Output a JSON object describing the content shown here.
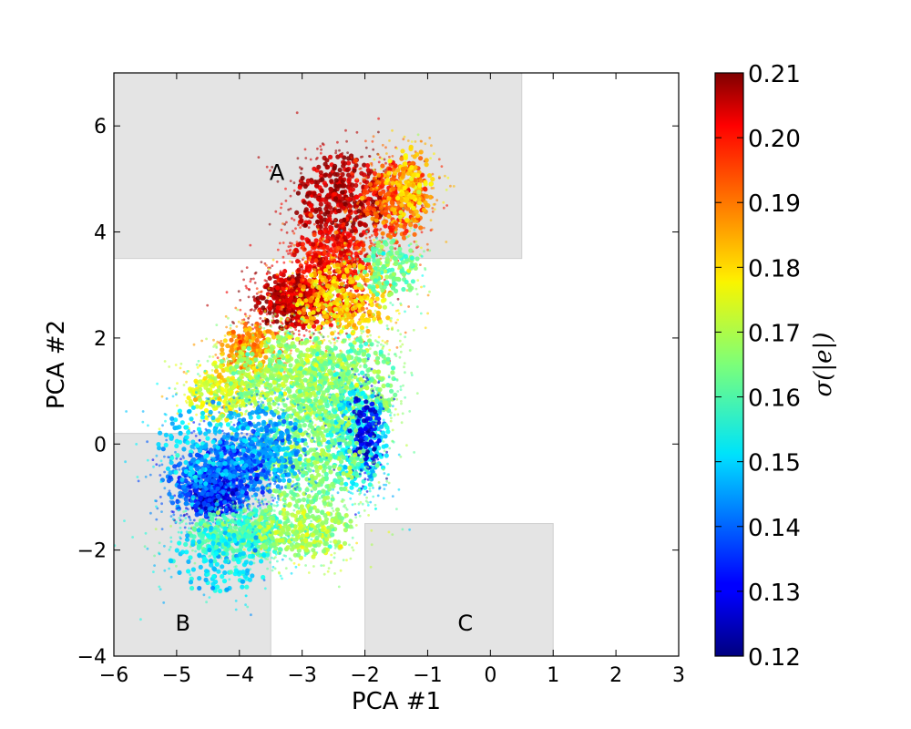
{
  "chart_data": {
    "type": "scatter",
    "xlabel": "PCA #1",
    "ylabel": "PCA #2",
    "xlim": [
      -6,
      3
    ],
    "ylim": [
      -4,
      7
    ],
    "xticks": [
      -6,
      -5,
      -4,
      -3,
      -2,
      -1,
      0,
      1,
      2,
      3
    ],
    "yticks": [
      -4,
      -2,
      0,
      2,
      4,
      6
    ],
    "xtick_labels": [
      "−6",
      "−5",
      "−4",
      "−3",
      "−2",
      "−1",
      "0",
      "1",
      "2",
      "3"
    ],
    "ytick_labels": [
      "−4",
      "−2",
      "0",
      "2",
      "4",
      "6"
    ],
    "grid": false,
    "colorbar": {
      "label": "σ(|e|)",
      "colormap": "jet",
      "range": [
        0.12,
        0.21
      ],
      "ticks": [
        0.12,
        0.13,
        0.14,
        0.15,
        0.16,
        0.17,
        0.18,
        0.19,
        0.2,
        0.21
      ],
      "tick_labels": [
        "0.12",
        "0.13",
        "0.14",
        "0.15",
        "0.16",
        "0.17",
        "0.18",
        "0.19",
        "0.20",
        "0.21"
      ]
    },
    "regions": [
      {
        "label": "A",
        "x": [
          -6,
          0.5
        ],
        "y": [
          3.5,
          7
        ]
      },
      {
        "label": "B",
        "x": [
          -6,
          -3.5
        ],
        "y": [
          -4,
          0.2
        ]
      },
      {
        "label": "C",
        "x": [
          -2,
          1
        ],
        "y": [
          -4,
          -1.5
        ]
      }
    ],
    "region_label_positions": [
      {
        "label": "A",
        "x": -3.4,
        "y": 5.1
      },
      {
        "label": "B",
        "x": -4.9,
        "y": -3.4
      },
      {
        "label": "C",
        "x": -0.4,
        "y": -3.4
      }
    ],
    "region_color": "#e4e4e4",
    "clusters": [
      {
        "cx": -2.4,
        "cy": 4.6,
        "sx": 0.45,
        "sy": 0.55,
        "n": 500,
        "value": 0.205
      },
      {
        "cx": -1.5,
        "cy": 4.6,
        "sx": 0.35,
        "sy": 0.5,
        "n": 350,
        "value": 0.192
      },
      {
        "cx": -1.3,
        "cy": 4.9,
        "sx": 0.25,
        "sy": 0.45,
        "n": 180,
        "value": 0.18
      },
      {
        "cx": -2.5,
        "cy": 3.6,
        "sx": 0.4,
        "sy": 0.3,
        "n": 300,
        "value": 0.198
      },
      {
        "cx": -3.2,
        "cy": 2.7,
        "sx": 0.35,
        "sy": 0.35,
        "n": 300,
        "value": 0.207
      },
      {
        "cx": -2.8,
        "cy": 2.8,
        "sx": 0.5,
        "sy": 0.4,
        "n": 400,
        "value": 0.2
      },
      {
        "cx": -2.3,
        "cy": 2.7,
        "sx": 0.5,
        "sy": 0.45,
        "n": 400,
        "value": 0.18
      },
      {
        "cx": -3.8,
        "cy": 1.8,
        "sx": 0.3,
        "sy": 0.3,
        "n": 250,
        "value": 0.185
      },
      {
        "cx": -4.3,
        "cy": 1.0,
        "sx": 0.35,
        "sy": 0.35,
        "n": 250,
        "value": 0.175
      },
      {
        "cx": -3.2,
        "cy": 1.3,
        "sx": 0.6,
        "sy": 0.5,
        "n": 700,
        "value": 0.168
      },
      {
        "cx": -2.3,
        "cy": 1.1,
        "sx": 0.5,
        "sy": 0.6,
        "n": 550,
        "value": 0.165
      },
      {
        "cx": -2.1,
        "cy": 0.1,
        "sx": 0.3,
        "sy": 0.6,
        "n": 350,
        "value": 0.152
      },
      {
        "cx": -2.0,
        "cy": 0.3,
        "sx": 0.15,
        "sy": 0.5,
        "n": 150,
        "value": 0.13
      },
      {
        "cx": -2.9,
        "cy": -0.2,
        "sx": 0.55,
        "sy": 0.6,
        "n": 600,
        "value": 0.165
      },
      {
        "cx": -3.6,
        "cy": -0.1,
        "sx": 0.4,
        "sy": 0.5,
        "n": 400,
        "value": 0.145
      },
      {
        "cx": -4.2,
        "cy": -0.6,
        "sx": 0.4,
        "sy": 0.45,
        "n": 450,
        "value": 0.138
      },
      {
        "cx": -4.4,
        "cy": -1.0,
        "sx": 0.25,
        "sy": 0.25,
        "n": 200,
        "value": 0.128
      },
      {
        "cx": -4.6,
        "cy": -0.8,
        "sx": 0.4,
        "sy": 0.35,
        "n": 250,
        "value": 0.14
      },
      {
        "cx": -4.0,
        "cy": -1.7,
        "sx": 0.5,
        "sy": 0.3,
        "n": 450,
        "value": 0.16
      },
      {
        "cx": -3.0,
        "cy": -1.6,
        "sx": 0.5,
        "sy": 0.35,
        "n": 400,
        "value": 0.168
      },
      {
        "cx": -4.3,
        "cy": -2.2,
        "sx": 0.5,
        "sy": 0.4,
        "n": 200,
        "value": 0.152
      },
      {
        "cx": -4.5,
        "cy": 0.0,
        "sx": 0.5,
        "sy": 0.5,
        "n": 200,
        "value": 0.15
      },
      {
        "cx": -1.6,
        "cy": 3.3,
        "sx": 0.3,
        "sy": 0.35,
        "n": 200,
        "value": 0.163
      }
    ]
  }
}
